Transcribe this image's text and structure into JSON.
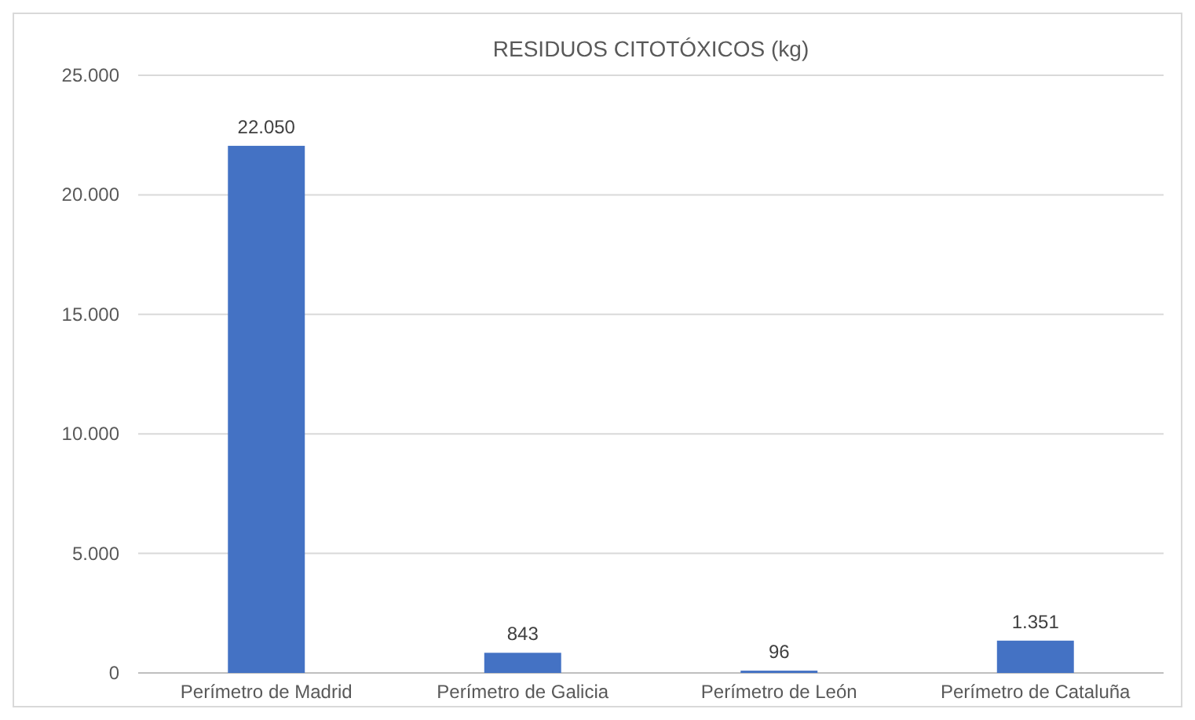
{
  "chart_data": {
    "type": "bar",
    "title": "RESIDUOS CITOTÓXICOS (kg)",
    "categories": [
      "Perímetro de Madrid",
      "Perímetro de Galicia",
      "Perímetro de León",
      "Perímetro de Cataluña"
    ],
    "values": [
      22050,
      843,
      96,
      1351
    ],
    "value_labels": [
      "22.050",
      "843",
      "96",
      "1.351"
    ],
    "color": "#4472c4",
    "ylim": [
      0,
      25000
    ],
    "yticks": [
      {
        "value": 0,
        "label": "0"
      },
      {
        "value": 5000,
        "label": "5.000"
      },
      {
        "value": 10000,
        "label": "10.000"
      },
      {
        "value": 15000,
        "label": "15.000"
      },
      {
        "value": 20000,
        "label": "20.000"
      },
      {
        "value": 25000,
        "label": "25.000"
      }
    ],
    "grid": "y"
  }
}
